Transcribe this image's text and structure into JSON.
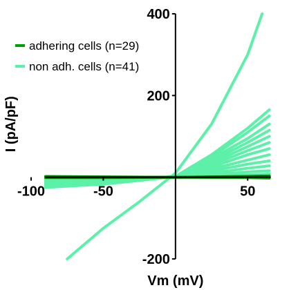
{
  "chart_data": {
    "type": "line",
    "title": "",
    "xlabel": "Vm (mV)",
    "ylabel": "I (pA/pF)",
    "xlim": [
      -100,
      70
    ],
    "ylim": [
      -200,
      400
    ],
    "x_ticks": [
      -100,
      -50,
      50
    ],
    "x_tick_labels": [
      "-100",
      "-50",
      "50"
    ],
    "y_ticks": [
      -200,
      200,
      400
    ],
    "y_tick_labels": [
      "-200",
      "200",
      "400"
    ],
    "grid": false,
    "legend_position": "top-left",
    "legend": [
      {
        "label": "adhering cells (n=29)",
        "color": "#00a000"
      },
      {
        "label": "non adh. cells (n=41)",
        "color": "#5cf0a8"
      }
    ],
    "series": [
      {
        "name": "non adh. cells (n=41)",
        "color": "#5cf0a8",
        "x": [
          -75,
          -50,
          -25,
          0,
          25,
          50,
          60
        ],
        "y": [
          -200,
          -125,
          -60,
          10,
          130,
          300,
          400
        ]
      },
      {
        "name": "non adh. cells (n=41)",
        "color": "#5cf0a8",
        "x": [
          -90,
          -50,
          -25,
          0,
          25,
          50,
          65
        ],
        "y": [
          -25,
          -17,
          -8,
          2,
          55,
          120,
          165
        ]
      },
      {
        "name": "non adh. cells (n=41)",
        "color": "#5cf0a8",
        "x": [
          -90,
          -50,
          -25,
          0,
          25,
          50,
          65
        ],
        "y": [
          -23,
          -15,
          -7,
          2,
          50,
          110,
          150
        ]
      },
      {
        "name": "non adh. cells (n=41)",
        "color": "#5cf0a8",
        "x": [
          -90,
          -50,
          -25,
          0,
          25,
          50,
          65
        ],
        "y": [
          -21,
          -14,
          -7,
          2,
          45,
          95,
          130
        ]
      },
      {
        "name": "non adh. cells (n=41)",
        "color": "#5cf0a8",
        "x": [
          -90,
          -50,
          -25,
          0,
          25,
          50,
          65
        ],
        "y": [
          -19,
          -13,
          -6,
          2,
          40,
          85,
          115
        ]
      },
      {
        "name": "non adh. cells (n=41)",
        "color": "#5cf0a8",
        "x": [
          -90,
          -50,
          -25,
          0,
          25,
          50,
          65
        ],
        "y": [
          -17,
          -11,
          -5,
          2,
          35,
          75,
          100
        ]
      },
      {
        "name": "non adh. cells (n=41)",
        "color": "#5cf0a8",
        "x": [
          -90,
          -50,
          -25,
          0,
          25,
          50,
          65
        ],
        "y": [
          -15,
          -10,
          -5,
          2,
          30,
          65,
          85
        ]
      },
      {
        "name": "non adh. cells (n=41)",
        "color": "#5cf0a8",
        "x": [
          -90,
          -50,
          -25,
          0,
          25,
          50,
          65
        ],
        "y": [
          -13,
          -9,
          -4,
          1,
          25,
          55,
          70
        ]
      },
      {
        "name": "non adh. cells (n=41)",
        "color": "#5cf0a8",
        "x": [
          -90,
          -50,
          -25,
          0,
          25,
          50,
          65
        ],
        "y": [
          -11,
          -7,
          -3,
          1,
          20,
          42,
          55
        ]
      },
      {
        "name": "non adh. cells (n=41)",
        "color": "#5cf0a8",
        "x": [
          -90,
          -50,
          -25,
          0,
          25,
          50,
          65
        ],
        "y": [
          -9,
          -6,
          -3,
          1,
          15,
          32,
          40
        ]
      },
      {
        "name": "non adh. cells (n=41)",
        "color": "#5cf0a8",
        "x": [
          -90,
          -50,
          -25,
          0,
          25,
          50,
          65
        ],
        "y": [
          -7,
          -5,
          -2,
          1,
          10,
          22,
          28
        ]
      },
      {
        "name": "non adh. cells (n=41)",
        "color": "#5cf0a8",
        "x": [
          -90,
          -50,
          -25,
          0,
          25,
          50,
          65
        ],
        "y": [
          -5,
          -3,
          -1,
          1,
          6,
          13,
          16
        ]
      },
      {
        "name": "non adh. cells (n=41)",
        "color": "#5cf0a8",
        "x": [
          -90,
          -50,
          -25,
          0,
          25,
          50,
          65
        ],
        "y": [
          -3,
          -2,
          -1,
          0,
          3,
          6,
          8
        ]
      },
      {
        "name": "adhering cells (n=29)",
        "color": "#009a00",
        "x": [
          -90,
          -50,
          0,
          50,
          65
        ],
        "y": [
          2,
          1,
          0,
          -1,
          -2
        ]
      },
      {
        "name": "adhering cells (n=29)",
        "color": "#00b000",
        "x": [
          -90,
          -50,
          0,
          50,
          65
        ],
        "y": [
          -1,
          -1,
          0,
          1,
          1
        ]
      },
      {
        "name": "adhering cells (n=29)",
        "color": "#007a00",
        "x": [
          -90,
          -50,
          0,
          50,
          65
        ],
        "y": [
          0,
          0,
          0,
          2,
          3
        ]
      }
    ]
  }
}
